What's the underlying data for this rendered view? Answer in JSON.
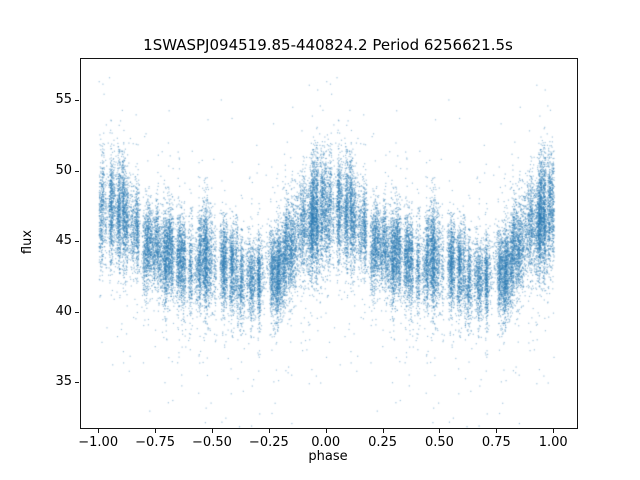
{
  "chart_data": {
    "type": "scatter",
    "title": "1SWASPJ094519.85-440824.2 Period 6256621.5s",
    "xlabel": "phase",
    "ylabel": "flux",
    "xlim": [
      -1.08,
      1.1
    ],
    "ylim": [
      31.8,
      58.0
    ],
    "xticks": {
      "values": [
        -1.0,
        -0.75,
        -0.5,
        -0.25,
        0.0,
        0.25,
        0.5,
        0.75,
        1.0
      ],
      "labels": [
        "−1.00",
        "−0.75",
        "−0.50",
        "−0.25",
        "0.00",
        "0.25",
        "0.50",
        "0.75",
        "1.00"
      ]
    },
    "yticks": {
      "values": [
        35,
        40,
        45,
        50,
        55
      ],
      "labels": [
        "35",
        "40",
        "45",
        "50",
        "55"
      ]
    },
    "grid": false,
    "legend": "none",
    "point_color": "#2f7cb4",
    "point_alpha": 0.45,
    "marker_size_px": 1.2,
    "phase_folded": true,
    "cycles_plotted": [
      -1,
      1
    ],
    "n_points_approx": 35000,
    "flux_range_observed": [
      33.3,
      56.4
    ],
    "envelope": {
      "phase_bins": [
        0.0,
        0.05,
        0.1,
        0.15,
        0.2,
        0.25,
        0.3,
        0.35,
        0.4,
        0.45,
        0.5,
        0.55,
        0.6,
        0.65,
        0.7,
        0.75,
        0.8,
        0.85,
        0.9,
        0.95
      ],
      "mean_flux": [
        47.3,
        47.6,
        47.0,
        45.8,
        44.8,
        44.6,
        44.3,
        43.9,
        43.6,
        43.7,
        43.9,
        43.3,
        42.9,
        42.6,
        42.4,
        42.7,
        43.4,
        44.6,
        46.0,
        46.9
      ],
      "flux_spread": [
        1.9,
        1.8,
        1.9,
        1.6,
        1.5,
        1.4,
        1.5,
        1.5,
        1.5,
        1.6,
        1.7,
        1.5,
        1.4,
        1.4,
        1.4,
        1.4,
        1.5,
        1.6,
        1.8,
        1.9
      ]
    }
  }
}
